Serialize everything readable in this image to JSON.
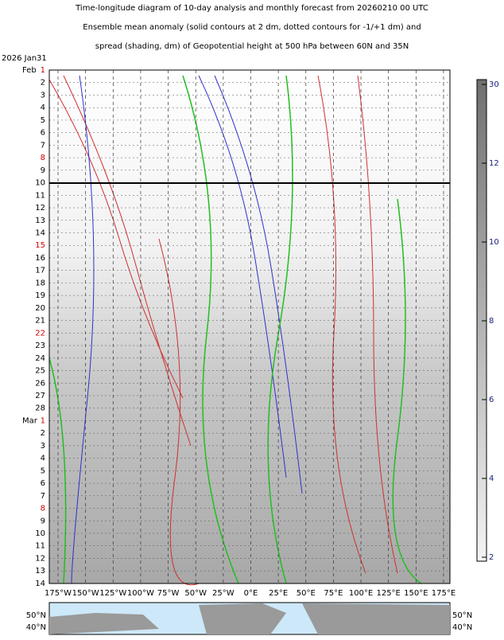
{
  "header": {
    "lines": [
      "Time-longitude diagram of 10-day analysis and monthly forecast from 20260210 00 UTC",
      "Ensemble mean anomaly (solid contours at 2 dm, dotted contours for -1/+1 dm) and",
      "spread (shading, dm) of Geopotential height at 500 hPa between 60N and 35N"
    ]
  },
  "y_axis": {
    "start_label": "2026 Jan31",
    "months": [
      "Feb",
      "Mar"
    ],
    "days": [
      [
        "1",
        "2",
        "3",
        "4",
        "5",
        "6",
        "7",
        "8",
        "9",
        "10",
        "11",
        "12",
        "13",
        "14",
        "15",
        "16",
        "17",
        "18",
        "19",
        "20",
        "21",
        "22",
        "23",
        "24",
        "25",
        "26",
        "27",
        "28"
      ],
      [
        "1",
        "2",
        "3",
        "4",
        "5",
        "6",
        "7",
        "8",
        "9",
        "10",
        "11",
        "12",
        "13",
        "14"
      ]
    ]
  },
  "x_axis": {
    "labels": [
      "175°W",
      "150°W",
      "125°W",
      "100°W",
      "75°W",
      "50°W",
      "25°W",
      "0°E",
      "25°E",
      "50°E",
      "75°E",
      "100°E",
      "125°E",
      "150°E",
      "175°E"
    ]
  },
  "colorbar": {
    "ticks": [
      2,
      4,
      6,
      8,
      10,
      12,
      30
    ]
  },
  "map": {
    "lat_labels": [
      "50°N",
      "40°N"
    ]
  }
}
